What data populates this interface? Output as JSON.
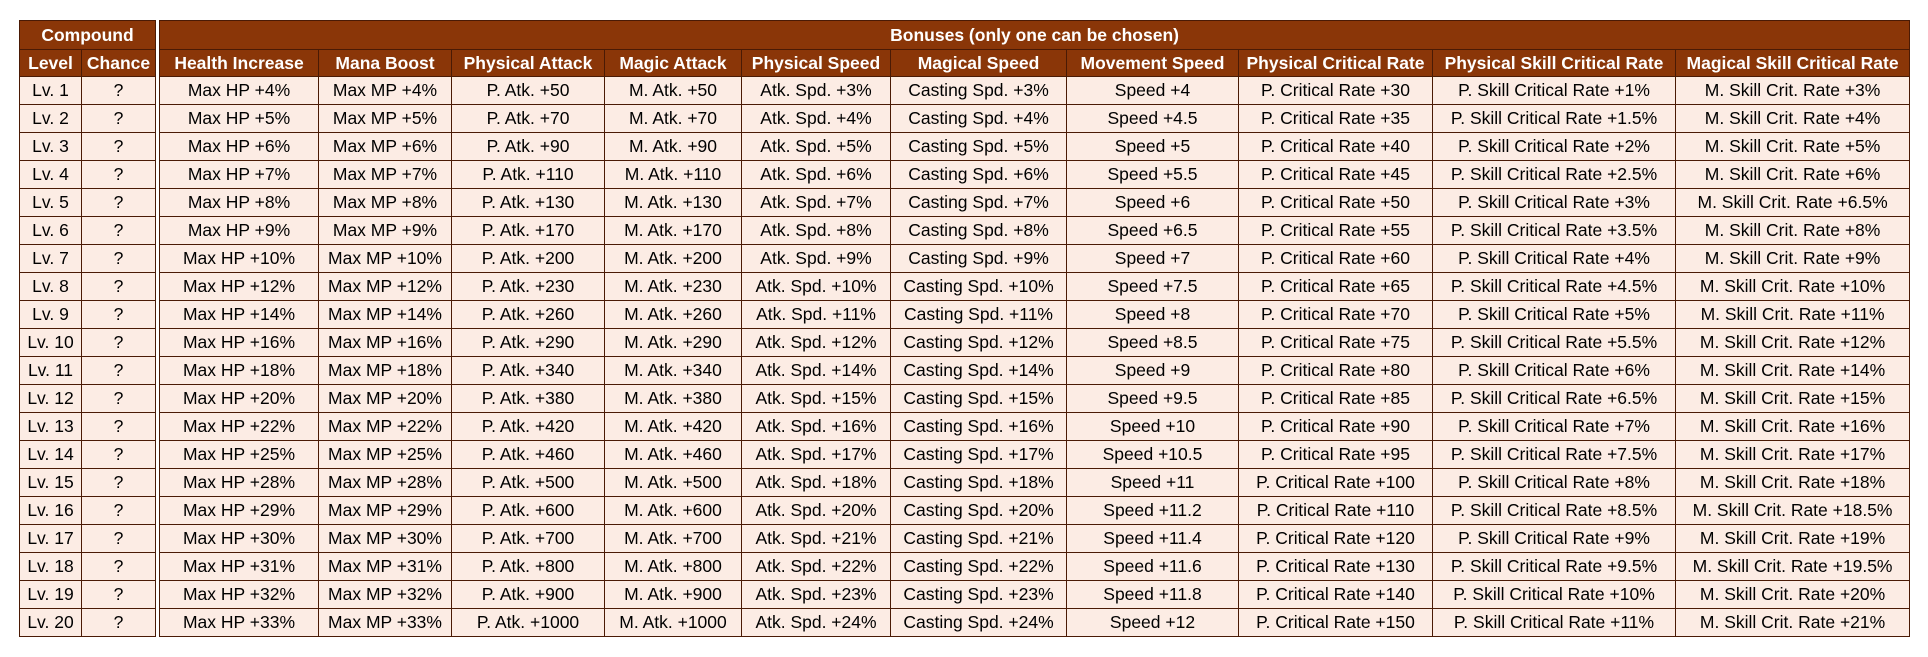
{
  "compound": {
    "title": "Compound",
    "col_level": "Level",
    "col_chance": "Chance",
    "rows": [
      {
        "level": "Lv. 1",
        "chance": "?"
      },
      {
        "level": "Lv. 2",
        "chance": "?"
      },
      {
        "level": "Lv. 3",
        "chance": "?"
      },
      {
        "level": "Lv. 4",
        "chance": "?"
      },
      {
        "level": "Lv. 5",
        "chance": "?"
      },
      {
        "level": "Lv. 6",
        "chance": "?"
      },
      {
        "level": "Lv. 7",
        "chance": "?"
      },
      {
        "level": "Lv. 8",
        "chance": "?"
      },
      {
        "level": "Lv. 9",
        "chance": "?"
      },
      {
        "level": "Lv. 10",
        "chance": "?"
      },
      {
        "level": "Lv. 11",
        "chance": "?"
      },
      {
        "level": "Lv. 12",
        "chance": "?"
      },
      {
        "level": "Lv. 13",
        "chance": "?"
      },
      {
        "level": "Lv. 14",
        "chance": "?"
      },
      {
        "level": "Lv. 15",
        "chance": "?"
      },
      {
        "level": "Lv. 16",
        "chance": "?"
      },
      {
        "level": "Lv. 17",
        "chance": "?"
      },
      {
        "level": "Lv. 18",
        "chance": "?"
      },
      {
        "level": "Lv. 19",
        "chance": "?"
      },
      {
        "level": "Lv. 20",
        "chance": "?"
      }
    ]
  },
  "bonuses": {
    "title": "Bonuses (only one can be chosen)",
    "columns": [
      "Health Increase",
      "Mana Boost",
      "Physical Attack",
      "Magic Attack",
      "Physical Speed",
      "Magical Speed",
      "Movement Speed",
      "Physical Critical Rate",
      "Physical Skill Critical Rate",
      "Magical Skill Critical Rate"
    ],
    "rows": [
      [
        "Max HP +4%",
        "Max MP +4%",
        "P. Atk. +50",
        "M. Atk. +50",
        "Atk. Spd. +3%",
        "Casting Spd. +3%",
        "Speed +4",
        "P. Critical Rate +30",
        "P. Skill Critical Rate +1%",
        "M. Skill Crit. Rate +3%"
      ],
      [
        "Max HP +5%",
        "Max MP +5%",
        "P. Atk. +70",
        "M. Atk. +70",
        "Atk. Spd. +4%",
        "Casting Spd. +4%",
        "Speed +4.5",
        "P. Critical Rate +35",
        "P. Skill Critical Rate +1.5%",
        "M. Skill Crit. Rate +4%"
      ],
      [
        "Max HP +6%",
        "Max MP +6%",
        "P. Atk. +90",
        "M. Atk. +90",
        "Atk. Spd. +5%",
        "Casting Spd. +5%",
        "Speed +5",
        "P. Critical Rate +40",
        "P. Skill Critical Rate +2%",
        "M. Skill Crit. Rate +5%"
      ],
      [
        "Max HP +7%",
        "Max MP +7%",
        "P. Atk. +110",
        "M. Atk. +110",
        "Atk. Spd. +6%",
        "Casting Spd. +6%",
        "Speed +5.5",
        "P. Critical Rate +45",
        "P. Skill Critical Rate +2.5%",
        "M. Skill Crit. Rate +6%"
      ],
      [
        "Max HP +8%",
        "Max MP +8%",
        "P. Atk. +130",
        "M. Atk. +130",
        "Atk. Spd. +7%",
        "Casting Spd. +7%",
        "Speed +6",
        "P. Critical Rate +50",
        "P. Skill Critical Rate +3%",
        "M. Skill Crit. Rate +6.5%"
      ],
      [
        "Max HP +9%",
        "Max MP +9%",
        "P. Atk. +170",
        "M. Atk. +170",
        "Atk. Spd. +8%",
        "Casting Spd. +8%",
        "Speed +6.5",
        "P. Critical Rate +55",
        "P. Skill Critical Rate +3.5%",
        "M. Skill Crit. Rate +8%"
      ],
      [
        "Max HP +10%",
        "Max MP +10%",
        "P. Atk. +200",
        "M. Atk. +200",
        "Atk. Spd. +9%",
        "Casting Spd. +9%",
        "Speed +7",
        "P. Critical Rate +60",
        "P. Skill Critical Rate +4%",
        "M. Skill Crit. Rate +9%"
      ],
      [
        "Max HP +12%",
        "Max MP +12%",
        "P. Atk. +230",
        "M. Atk. +230",
        "Atk. Spd. +10%",
        "Casting Spd. +10%",
        "Speed +7.5",
        "P. Critical Rate +65",
        "P. Skill Critical Rate +4.5%",
        "M. Skill Crit. Rate +10%"
      ],
      [
        "Max HP +14%",
        "Max MP +14%",
        "P. Atk. +260",
        "M. Atk. +260",
        "Atk. Spd. +11%",
        "Casting Spd. +11%",
        "Speed +8",
        "P. Critical Rate +70",
        "P. Skill Critical Rate +5%",
        "M. Skill Crit. Rate +11%"
      ],
      [
        "Max HP +16%",
        "Max MP +16%",
        "P. Atk. +290",
        "M. Atk. +290",
        "Atk. Spd. +12%",
        "Casting Spd. +12%",
        "Speed +8.5",
        "P. Critical Rate +75",
        "P. Skill Critical Rate +5.5%",
        "M. Skill Crit. Rate +12%"
      ],
      [
        "Max HP +18%",
        "Max MP +18%",
        "P. Atk. +340",
        "M. Atk. +340",
        "Atk. Spd. +14%",
        "Casting Spd. +14%",
        "Speed +9",
        "P. Critical Rate +80",
        "P. Skill Critical Rate +6%",
        "M. Skill Crit. Rate +14%"
      ],
      [
        "Max HP +20%",
        "Max MP +20%",
        "P. Atk. +380",
        "M. Atk. +380",
        "Atk. Spd. +15%",
        "Casting Spd. +15%",
        "Speed +9.5",
        "P. Critical Rate +85",
        "P. Skill Critical Rate +6.5%",
        "M. Skill Crit. Rate +15%"
      ],
      [
        "Max HP +22%",
        "Max MP +22%",
        "P. Atk. +420",
        "M. Atk. +420",
        "Atk. Spd. +16%",
        "Casting Spd. +16%",
        "Speed +10",
        "P. Critical Rate +90",
        "P. Skill Critical Rate +7%",
        "M. Skill Crit. Rate +16%"
      ],
      [
        "Max HP +25%",
        "Max MP +25%",
        "P. Atk. +460",
        "M. Atk. +460",
        "Atk. Spd. +17%",
        "Casting Spd. +17%",
        "Speed +10.5",
        "P. Critical Rate +95",
        "P. Skill Critical Rate +7.5%",
        "M. Skill Crit. Rate +17%"
      ],
      [
        "Max HP +28%",
        "Max MP +28%",
        "P. Atk. +500",
        "M. Atk. +500",
        "Atk. Spd. +18%",
        "Casting Spd. +18%",
        "Speed +11",
        "P. Critical Rate +100",
        "P. Skill Critical Rate +8%",
        "M. Skill Crit. Rate +18%"
      ],
      [
        "Max HP +29%",
        "Max MP +29%",
        "P. Atk. +600",
        "M. Atk. +600",
        "Atk. Spd. +20%",
        "Casting Spd. +20%",
        "Speed +11.2",
        "P. Critical Rate +110",
        "P. Skill Critical Rate +8.5%",
        "M. Skill Crit. Rate +18.5%"
      ],
      [
        "Max HP +30%",
        "Max MP +30%",
        "P. Atk. +700",
        "M. Atk. +700",
        "Atk. Spd. +21%",
        "Casting Spd. +21%",
        "Speed +11.4",
        "P. Critical Rate +120",
        "P. Skill Critical Rate +9%",
        "M. Skill Crit. Rate +19%"
      ],
      [
        "Max HP +31%",
        "Max MP +31%",
        "P. Atk. +800",
        "M. Atk. +800",
        "Atk. Spd. +22%",
        "Casting Spd. +22%",
        "Speed +11.6",
        "P. Critical Rate +130",
        "P. Skill Critical Rate +9.5%",
        "M. Skill Crit. Rate +19.5%"
      ],
      [
        "Max HP +32%",
        "Max MP +32%",
        "P. Atk. +900",
        "M. Atk. +900",
        "Atk. Spd. +23%",
        "Casting Spd. +23%",
        "Speed +11.8",
        "P. Critical Rate +140",
        "P. Skill Critical Rate +10%",
        "M. Skill Crit. Rate +20%"
      ],
      [
        "Max HP +33%",
        "Max MP +33%",
        "P. Atk. +1000",
        "M. Atk. +1000",
        "Atk. Spd. +24%",
        "Casting Spd. +24%",
        "Speed +12",
        "P. Critical Rate +150",
        "P. Skill Critical Rate +11%",
        "M. Skill Crit. Rate +21%"
      ]
    ]
  }
}
